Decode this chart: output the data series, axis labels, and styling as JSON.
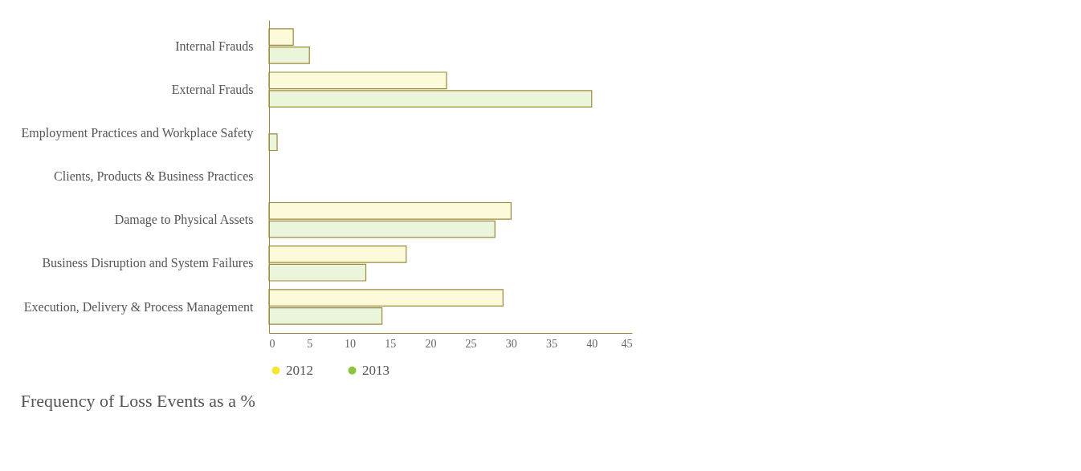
{
  "chart_data": {
    "type": "bar",
    "orientation": "horizontal",
    "title": "Frequency of Loss Events as a %",
    "categories": [
      "Internal Frauds",
      "External Frauds",
      "Employment Practices and Workplace Safety",
      "Clients, Products & Business Practices",
      "Damage to Physical Assets",
      "Business Disruption and System Failures",
      "Execution, Delivery & Process Management"
    ],
    "series": [
      {
        "name": "2012",
        "color": "#f5e634",
        "values": [
          3,
          22,
          0,
          0,
          30,
          17,
          29
        ]
      },
      {
        "name": "2013",
        "color": "#8cc63f",
        "values": [
          5,
          40,
          1,
          0,
          28,
          12,
          14
        ]
      }
    ],
    "xlim": [
      0,
      45
    ],
    "xticks": [
      0,
      5,
      10,
      15,
      20,
      25,
      30,
      35,
      40,
      45
    ],
    "grid": false,
    "legend": "bottom"
  }
}
